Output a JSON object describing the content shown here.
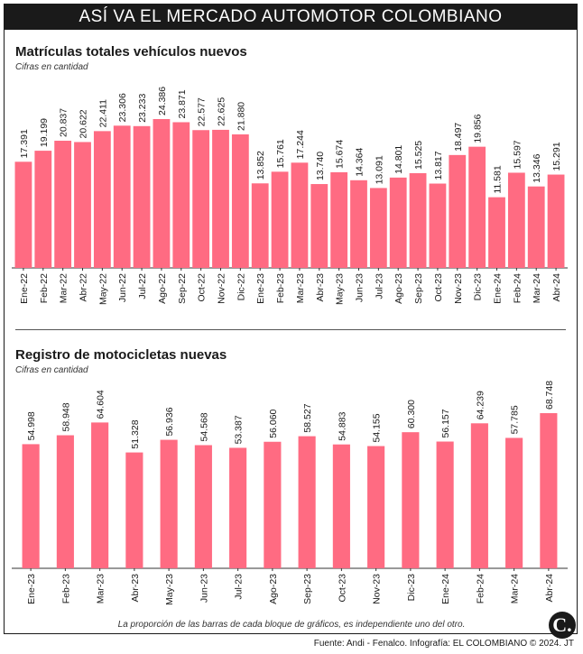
{
  "header": {
    "title": "ASÍ VA EL MERCADO AUTOMOTOR COLOMBIANO"
  },
  "colors": {
    "bar": "#ff6b82",
    "header_bg": "#1a1a1a"
  },
  "chart_data": [
    {
      "type": "bar",
      "title": "Matrículas totales vehículos nuevos",
      "subtitle": "Cifras en cantidad",
      "categories": [
        "Ene-22",
        "Feb-22",
        "Mar-22",
        "Abr-22",
        "May-22",
        "Jun-22",
        "Jul-22",
        "Ago-22",
        "Sep-22",
        "Oct-22",
        "Nov-22",
        "Dic-22",
        "Ene-23",
        "Feb-23",
        "Mar-23",
        "Abr-23",
        "May-23",
        "Jun-23",
        "Jul-23",
        "Ago-23",
        "Sep-23",
        "Oct-23",
        "Nov-23",
        "Dic-23",
        "Ene-24",
        "Feb-24",
        "Mar-24",
        "Abr-24"
      ],
      "values": [
        17391,
        19199,
        20837,
        20622,
        22411,
        23306,
        23233,
        24386,
        23871,
        22577,
        22625,
        21880,
        13852,
        15761,
        17244,
        13740,
        15674,
        14364,
        13091,
        14801,
        15525,
        13817,
        18497,
        19856,
        11581,
        15597,
        13346,
        15291
      ],
      "value_labels": [
        "17.391",
        "19.199",
        "20.837",
        "20.622",
        "22.411",
        "23.306",
        "23.233",
        "24.386",
        "23.871",
        "22.577",
        "22.625",
        "21.880",
        "13.852",
        "15.761",
        "17.244",
        "13.740",
        "15.674",
        "14.364",
        "13.091",
        "14.801",
        "15.525",
        "13.817",
        "18.497",
        "19.856",
        "11.581",
        "15.597",
        "13.346",
        "15.291"
      ],
      "ylim": [
        0,
        24386
      ]
    },
    {
      "type": "bar",
      "title": "Registro de motocicletas nuevas",
      "subtitle": "Cifras en cantidad",
      "categories": [
        "Ene-23",
        "Feb-23",
        "Mar-23",
        "Abr-23",
        "May-23",
        "Jun-23",
        "Jul-23",
        "Ago-23",
        "Sep-23",
        "Oct-23",
        "Nov-23",
        "Dic-23",
        "Ene-24",
        "Feb-24",
        "Mar-24",
        "Abr-24"
      ],
      "values": [
        54998,
        58948,
        64604,
        51328,
        56936,
        54568,
        53387,
        56060,
        58527,
        54883,
        54155,
        60300,
        56157,
        64239,
        57785,
        68748
      ],
      "value_labels": [
        "54.998",
        "58.948",
        "64.604",
        "51.328",
        "56.936",
        "54.568",
        "53.387",
        "56.060",
        "58.527",
        "54.883",
        "54.155",
        "60.300",
        "56.157",
        "64.239",
        "57.785",
        "68.748"
      ],
      "ylim": [
        0,
        68748
      ]
    }
  ],
  "footer": {
    "note": "La proporción de las barras de cada bloque de gráficos, es independiente uno del otro.",
    "logo": "C.",
    "source": "Fuente: Andi - Fenalco. Infografía: EL COLOMBIANO © 2024. JT"
  }
}
